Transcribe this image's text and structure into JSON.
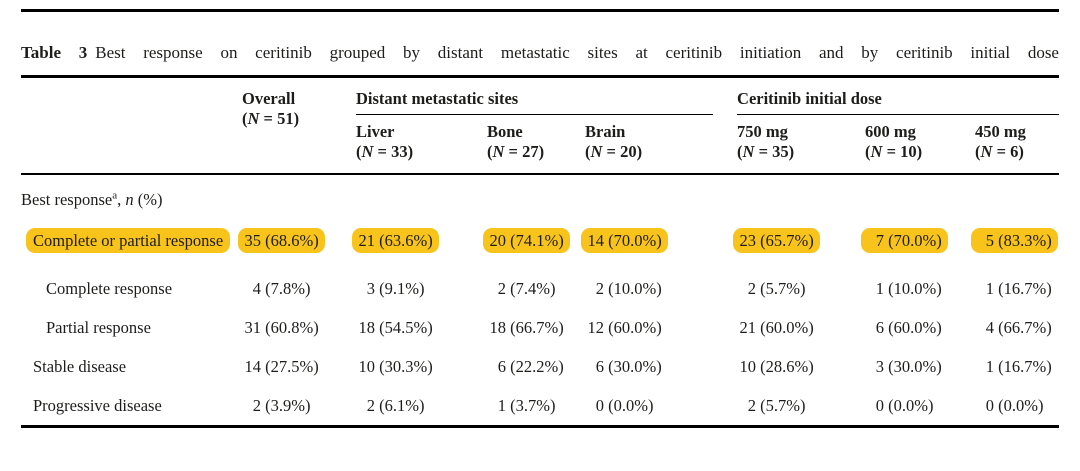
{
  "colors": {
    "highlight": "#F8C31A",
    "rule": "#000000",
    "text": "#1D1D1B",
    "background": "#FFFFFF"
  },
  "title": {
    "bold": "Table 3",
    "rest": "Best response on ceritinib grouped by distant metastatic sites at ceritinib initiation and by ceritinib initial dose"
  },
  "table": {
    "group_headers": [
      {
        "label": "",
        "span": 2,
        "ruled": false
      },
      {
        "label": "Distant metastatic sites",
        "span": 3,
        "ruled": true
      },
      {
        "label": "Ceritinib initial dose",
        "span": 3,
        "ruled": true
      }
    ],
    "n_tokens": {
      "open": "(",
      "var": "N",
      "eq": " = ",
      "close": ")"
    },
    "columns": [
      {
        "slug": "row-label",
        "label": "",
        "count": ""
      },
      {
        "slug": "overall",
        "label": "Overall",
        "count": "51"
      },
      {
        "slug": "liver",
        "label": "Liver",
        "count": "33"
      },
      {
        "slug": "bone",
        "label": "Bone",
        "count": "27"
      },
      {
        "slug": "brain",
        "label": "Brain",
        "count": "20"
      },
      {
        "slug": "750-mg",
        "label": "750 mg",
        "count": "35"
      },
      {
        "slug": "600-mg",
        "label": "600 mg",
        "count": "10"
      },
      {
        "slug": "450-mg",
        "label": "450 mg",
        "count": "6"
      }
    ],
    "section_row": {
      "main": "Best response",
      "sup": "a",
      "sep": ", ",
      "italic": "n",
      "tail": " (%)"
    },
    "rows": [
      {
        "label": "Complete or partial response",
        "indent": 1,
        "highlight": true,
        "cells": [
          "35 (68.6%)",
          "21 (63.6%)",
          "20 (74.1%)",
          "14 (70.0%)",
          "23 (65.7%)",
          "7 (70.0%)",
          "5 (83.3%)"
        ]
      },
      {
        "label": "Complete response",
        "indent": 2,
        "highlight": false,
        "cells": [
          "4 (7.8%)",
          "3 (9.1%)",
          "2 (7.4%)",
          "2 (10.0%)",
          "2 (5.7%)",
          "1 (10.0%)",
          "1 (16.7%)"
        ]
      },
      {
        "label": "Partial response",
        "indent": 2,
        "highlight": false,
        "cells": [
          "31 (60.8%)",
          "18 (54.5%)",
          "18 (66.7%)",
          "12 (60.0%)",
          "21 (60.0%)",
          "6 (60.0%)",
          "4 (66.7%)"
        ]
      },
      {
        "label": "Stable disease",
        "indent": 1,
        "highlight": false,
        "cells": [
          "14 (27.5%)",
          "10 (30.3%)",
          "6 (22.2%)",
          "6 (30.0%)",
          "10 (28.6%)",
          "3 (30.0%)",
          "1 (16.7%)"
        ]
      },
      {
        "label": "Progressive disease",
        "indent": 1,
        "highlight": false,
        "cells": [
          "2 (3.9%)",
          "2 (6.1%)",
          "1 (3.7%)",
          "0 (0.0%)",
          "2 (5.7%)",
          "0 (0.0%)",
          "0 (0.0%)"
        ]
      }
    ]
  }
}
